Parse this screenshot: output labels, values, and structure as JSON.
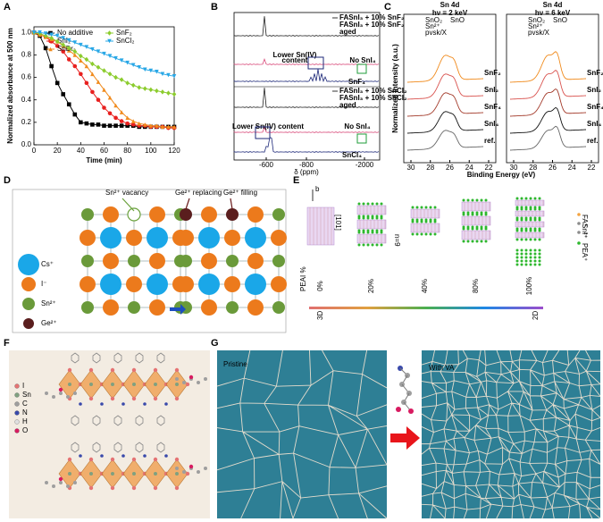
{
  "chart_data": {
    "type": "line",
    "xlabel": "Time (min)",
    "ylabel": "Normalized absorbance at 500 nm",
    "x": [
      0,
      5,
      10,
      15,
      20,
      25,
      30,
      35,
      40,
      45,
      50,
      55,
      60,
      65,
      70,
      75,
      80,
      85,
      90,
      95,
      100,
      105,
      110,
      115,
      120
    ],
    "xlim": [
      0,
      120
    ],
    "xticks": [
      0,
      20,
      40,
      60,
      80,
      100,
      120
    ],
    "ylim": [
      0,
      1.05
    ],
    "yticks": [
      {
        "value": 0,
        "label": "0.0"
      },
      0.2,
      0.4,
      0.6,
      0.8,
      {
        "value": 1,
        "label": "1.0"
      }
    ],
    "series": [
      {
        "name": "No additive",
        "color": "#000000",
        "marker": "square",
        "values": [
          1.0,
          0.97,
          0.86,
          0.7,
          0.55,
          0.45,
          0.36,
          0.27,
          0.2,
          0.19,
          0.18,
          0.18,
          0.17,
          0.17,
          0.17,
          0.17,
          0.17,
          0.17,
          0.16,
          0.16,
          0.16,
          0.16,
          0.16,
          0.16,
          0.16
        ]
      },
      {
        "name": "SnI₂",
        "color": "#e8201f",
        "marker": "circle",
        "values": [
          1.0,
          0.98,
          0.96,
          0.92,
          0.88,
          0.83,
          0.76,
          0.7,
          0.63,
          0.55,
          0.47,
          0.4,
          0.33,
          0.28,
          0.24,
          0.21,
          0.19,
          0.18,
          0.17,
          0.17,
          0.16,
          0.16,
          0.16,
          0.15,
          0.15
        ]
      },
      {
        "name": "SnBr₂",
        "color": "#f08a1c",
        "marker": "triangle",
        "values": [
          1.0,
          0.98,
          0.96,
          0.94,
          0.92,
          0.88,
          0.84,
          0.8,
          0.75,
          0.7,
          0.63,
          0.56,
          0.49,
          0.42,
          0.35,
          0.29,
          0.24,
          0.21,
          0.19,
          0.18,
          0.17,
          0.17,
          0.16,
          0.16,
          0.16
        ]
      },
      {
        "name": "SnF₂",
        "color": "#8ccc2e",
        "marker": "diamond",
        "values": [
          1.0,
          0.99,
          0.97,
          0.95,
          0.92,
          0.89,
          0.86,
          0.83,
          0.79,
          0.76,
          0.72,
          0.69,
          0.66,
          0.63,
          0.6,
          0.58,
          0.55,
          0.53,
          0.51,
          0.5,
          0.49,
          0.48,
          0.47,
          0.46,
          0.45
        ]
      },
      {
        "name": "SnCl₂",
        "color": "#28a7e6",
        "marker": "down-triangle",
        "values": [
          1.0,
          1.0,
          0.99,
          0.98,
          0.97,
          0.95,
          0.93,
          0.91,
          0.89,
          0.87,
          0.85,
          0.83,
          0.81,
          0.79,
          0.77,
          0.75,
          0.73,
          0.71,
          0.69,
          0.67,
          0.66,
          0.65,
          0.63,
          0.62,
          0.61
        ]
      }
    ]
  },
  "panel_labels": [
    "A",
    "B",
    "C",
    "D",
    "E",
    "F",
    "G"
  ],
  "panel_b": {
    "labels": [
      "FASnI₃ + 10% SnF₂",
      "FASnI₃ + 10% SnF₂",
      "aged",
      "Lower Sn(IV)",
      "content",
      "No SnI₄",
      "SnF₄",
      "FASnI₃ + 10% SnCl₂",
      "FASnI₃ + 10% SnCl₂",
      "aged",
      "Lower Sn(IV) content",
      "No SnI₄",
      "SnCl₄"
    ],
    "xticks": [
      "-600",
      "-800",
      "-2000"
    ],
    "xlabel": "δ (ppm)"
  },
  "panel_c": {
    "ylabel": "Normalized Intensity (a.u.)",
    "xlabel": "Binding Energy (eV)",
    "titles": [
      [
        "Sn 4d",
        "hν = 2 keV"
      ],
      [
        "Sn 4d",
        "hν = 6 keV"
      ]
    ],
    "species": [
      "SnO₂",
      "SnO",
      "Sn²⁺",
      "Sn²⁺",
      "pvsk/X",
      "pvsk/X"
    ],
    "xticks": [
      "30",
      "28",
      "26",
      "24",
      "22"
    ],
    "traces": [
      "SnF₂",
      "SnI₂",
      "SnF₄",
      "SnI₄",
      "ref."
    ]
  },
  "panel_d": {
    "annotations": [
      "Sn²⁺ vacancy",
      "Ge²⁺ replacing",
      "Ge²⁺ filling"
    ],
    "legend": [
      "Cs⁺",
      "I⁻",
      "Sn²⁺",
      "Ge²⁺"
    ]
  },
  "panel_e": {
    "axis": "PEAI %",
    "percent": [
      "0%",
      "20%",
      "40%",
      "80%",
      "100%"
    ],
    "ends": [
      "3D",
      "2D"
    ],
    "n": "n=9",
    "direction": "[101]",
    "b": "b",
    "legend": [
      "FA⁺",
      "Sn²⁺",
      "I⁻",
      "PEA⁺"
    ]
  },
  "panel_f": {
    "legend": [
      "I",
      "Sn",
      "C",
      "N",
      "H",
      "O"
    ]
  },
  "panel_g": {
    "left": "Pristine",
    "right": "With VA"
  }
}
